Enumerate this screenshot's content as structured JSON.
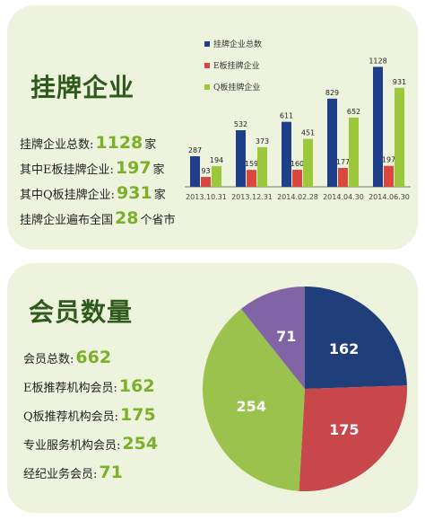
{
  "listing": {
    "heading": "挂牌企业",
    "stats": [
      {
        "label": "挂牌企业总数:",
        "value": "1128",
        "unit": "家"
      },
      {
        "label": "其中E板挂牌企业:",
        "value": "197",
        "unit": "家"
      },
      {
        "label": "其中Q板挂牌企业:",
        "value": "931",
        "unit": "家"
      },
      {
        "label": "挂牌企业遍布全国",
        "value": "28",
        "unit": "个省市"
      }
    ]
  },
  "members": {
    "heading": "会员数量",
    "stats": [
      {
        "label": "会员总数:",
        "value": "662"
      },
      {
        "label": "E板推荐机构会员:",
        "value": "162"
      },
      {
        "label": "Q板推荐机构会员:",
        "value": "175"
      },
      {
        "label": "专业服务机构会员:",
        "value": "254"
      },
      {
        "label": "经纪业务会员:",
        "value": "71"
      }
    ]
  },
  "chart_data": [
    {
      "type": "bar",
      "categories": [
        "2013.10.31",
        "2013.12.31",
        "2014.02.28",
        "2014.04.30",
        "2014.06.30"
      ],
      "series": [
        {
          "name": "挂牌企业总数",
          "color": "#1f3f8a",
          "values": [
            287,
            532,
            611,
            829,
            1128
          ]
        },
        {
          "name": "E板挂牌企业",
          "color": "#d9473e",
          "values": [
            93,
            159,
            160,
            177,
            197
          ]
        },
        {
          "name": "Q板挂牌企业",
          "color": "#9bc93b",
          "values": [
            194,
            373,
            451,
            652,
            931
          ]
        }
      ],
      "ylim": [
        0,
        1250
      ],
      "legend": "top-left"
    },
    {
      "type": "pie",
      "categories": [
        "E板推荐机构会员",
        "Q板推荐机构会员",
        "专业服务机构会员",
        "经纪业务会员"
      ],
      "values": [
        162,
        175,
        254,
        71
      ],
      "colors": [
        "#1f3e7a",
        "#c8474a",
        "#9bc24c",
        "#8064a6"
      ]
    }
  ]
}
